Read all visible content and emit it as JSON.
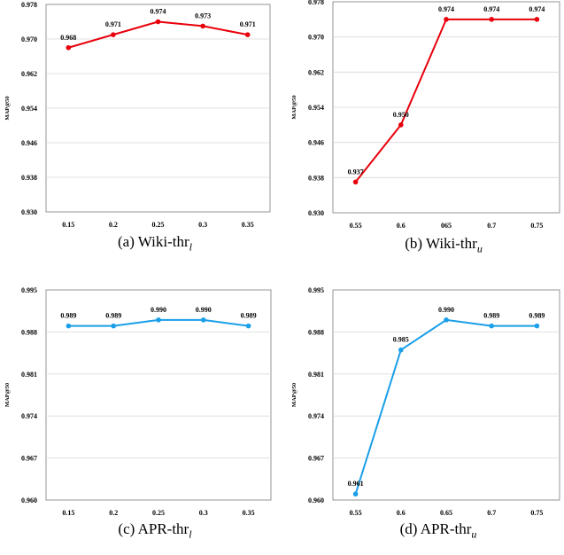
{
  "chart_data": [
    {
      "type": "line",
      "caption": {
        "prefix": "(a)  Wiki-thr",
        "sub": "l"
      },
      "ylabel": "MAP@50",
      "x": [
        "0.15",
        "0.2",
        "0.25",
        "0.3",
        "0.35"
      ],
      "values": [
        0.968,
        0.971,
        0.974,
        0.973,
        0.971
      ],
      "value_labels": [
        "0.968",
        "0.971",
        "0.974",
        "0.973",
        "0.971"
      ],
      "yticks": [
        "0.930",
        "0.938",
        "0.946",
        "0.954",
        "0.962",
        "0.970",
        "0.978"
      ],
      "ylim": [
        0.93,
        0.978
      ],
      "color": "#e8000b",
      "grid": true
    },
    {
      "type": "line",
      "caption": {
        "prefix": "(b)  Wiki-thr",
        "sub": "u"
      },
      "ylabel": "MAP@50",
      "x": [
        "0.55",
        "0.6",
        "065",
        "0.7",
        "0.75"
      ],
      "values": [
        0.937,
        0.95,
        0.974,
        0.974,
        0.974
      ],
      "value_labels": [
        "0.937",
        "0.950",
        "0.974",
        "0.974",
        "0.974"
      ],
      "yticks": [
        "0.930",
        "0.938",
        "0.946",
        "0.954",
        "0.962",
        "0.970",
        "0.978"
      ],
      "ylim": [
        0.93,
        0.978
      ],
      "color": "#e8000b",
      "grid": true
    },
    {
      "type": "line",
      "caption": {
        "prefix": "(c)  APR-thr",
        "sub": "l"
      },
      "ylabel": "MAP@50",
      "x": [
        "0.15",
        "0.2",
        "0.25",
        "0.3",
        "0.35"
      ],
      "values": [
        0.989,
        0.989,
        0.99,
        0.99,
        0.989
      ],
      "value_labels": [
        "0.989",
        "0.989",
        "0.990",
        "0.990",
        "0.989"
      ],
      "yticks": [
        "0.960",
        "0.967",
        "0.974",
        "0.981",
        "0.988",
        "0.995"
      ],
      "ylim": [
        0.96,
        0.995
      ],
      "color": "#1a9fe8",
      "grid": true
    },
    {
      "type": "line",
      "caption": {
        "prefix": "(d)  APR-thr",
        "sub": "u"
      },
      "ylabel": "MAP@50",
      "x": [
        "0.55",
        "0.6",
        "0.65",
        "0.7",
        "0.75"
      ],
      "values": [
        0.961,
        0.985,
        0.99,
        0.989,
        0.989
      ],
      "value_labels": [
        "0.961",
        "0.985",
        "0.990",
        "0.989",
        "0.989"
      ],
      "yticks": [
        "0.960",
        "0.967",
        "0.974",
        "0.981",
        "0.988",
        "0.995"
      ],
      "ylim": [
        0.96,
        0.995
      ],
      "color": "#1a9fe8",
      "grid": true
    }
  ]
}
